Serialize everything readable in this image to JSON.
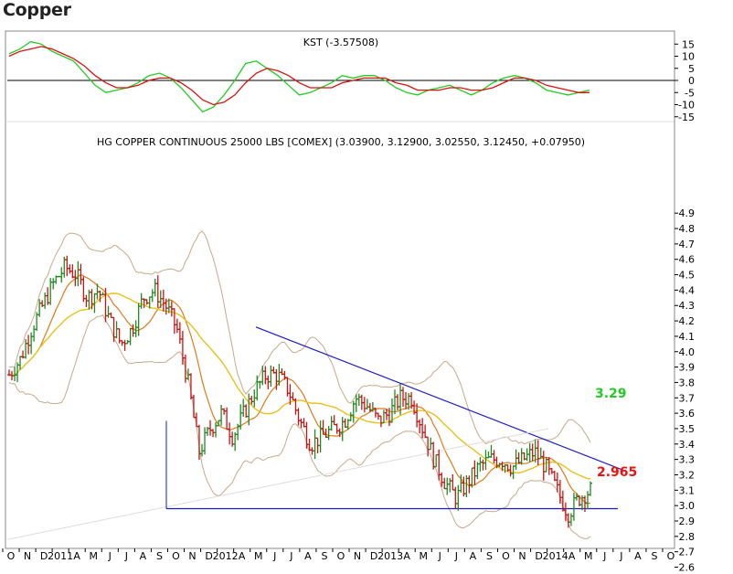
{
  "page": {
    "title": "Copper"
  },
  "colors": {
    "up_bar": "#1f8a1f",
    "down_bar": "#c81414",
    "ma_yellow": "#e8c21a",
    "ma_orange": "#e07a1a",
    "bollinger": "#c9a98a",
    "trendline": "#1a1acc",
    "kst_green": "#22cc22",
    "kst_red": "#dd1111",
    "level_green": "#22cc22",
    "level_red": "#ee1111"
  },
  "chart_data": [
    {
      "type": "line",
      "title": "KST (-3.57508)",
      "ylim": [
        -20,
        20
      ],
      "yticks": [
        15,
        10,
        5,
        0,
        -5,
        -10,
        -15
      ],
      "zero_line": 0,
      "series": [
        {
          "name": "KST",
          "color": "#22cc22",
          "values": [
            11,
            13,
            16,
            15,
            12,
            10,
            8,
            3,
            -2,
            -5,
            -4,
            -3,
            -1,
            2,
            3,
            1,
            -3,
            -8,
            -13,
            -11,
            -6,
            0,
            7,
            8,
            5,
            2,
            -2,
            -6,
            -5,
            -3,
            -1,
            2,
            1,
            2,
            2,
            0,
            -3,
            -5,
            -6,
            -4,
            -3,
            -2,
            -4,
            -6,
            -4,
            -1,
            1,
            2,
            1,
            -1,
            -4,
            -5,
            -6,
            -5,
            -4
          ]
        },
        {
          "name": "Signal",
          "color": "#dd1111",
          "values": [
            10,
            12,
            13,
            14,
            13,
            11,
            9,
            6,
            2,
            -1,
            -3,
            -3,
            -2,
            0,
            1,
            1,
            -1,
            -4,
            -8,
            -10,
            -9,
            -6,
            -1,
            3,
            5,
            4,
            2,
            -1,
            -3,
            -3,
            -3,
            -1,
            0,
            1,
            1,
            1,
            -1,
            -2,
            -4,
            -4,
            -4,
            -3,
            -3,
            -4,
            -4,
            -3,
            -1,
            1,
            1,
            0,
            -2,
            -3,
            -4,
            -5,
            -5
          ]
        }
      ]
    },
    {
      "type": "bar",
      "title": "HG COPPER CONTINUOUS 25000 LBS [COMEX] (3.03900, 3.12900, 3.02550, 3.12450, +0.07950)",
      "ylim": [
        2.6,
        4.9
      ],
      "yticks": [
        4.9,
        4.8,
        4.7,
        4.6,
        4.5,
        4.4,
        4.3,
        4.2,
        4.1,
        4.0,
        3.9,
        3.8,
        3.7,
        3.6,
        3.5,
        3.4,
        3.3,
        3.2,
        3.1,
        3.0,
        2.9,
        2.8,
        2.7,
        2.6
      ],
      "x_labels": [
        "O",
        "N",
        "D",
        "2011",
        "A",
        "M",
        "J",
        "J",
        "A",
        "S",
        "O",
        "N",
        "D",
        "2012",
        "A",
        "M",
        "J",
        "J",
        "A",
        "S",
        "O",
        "N",
        "D",
        "2013",
        "A",
        "M",
        "J",
        "J",
        "A",
        "S",
        "O",
        "N",
        "D",
        "2014",
        "A",
        "M",
        "J",
        "J",
        "A",
        "S",
        "O"
      ],
      "closes": [
        3.85,
        3.95,
        4.15,
        4.3,
        4.45,
        4.55,
        4.5,
        4.35,
        4.4,
        4.2,
        4.05,
        4.15,
        4.35,
        4.4,
        4.3,
        4.15,
        3.8,
        3.35,
        3.5,
        3.6,
        3.45,
        3.6,
        3.75,
        3.85,
        3.85,
        3.75,
        3.55,
        3.4,
        3.45,
        3.5,
        3.55,
        3.7,
        3.65,
        3.55,
        3.6,
        3.7,
        3.7,
        3.5,
        3.3,
        3.15,
        3.05,
        3.15,
        3.25,
        3.3,
        3.3,
        3.25,
        3.3,
        3.35,
        3.25,
        3.1,
        2.95,
        3.05,
        3.1
      ],
      "levels": [
        {
          "label": "3.29",
          "value": 3.29,
          "color": "#22cc22"
        },
        {
          "label": "2.965",
          "value": 2.965,
          "color": "#ee1111"
        }
      ]
    }
  ]
}
